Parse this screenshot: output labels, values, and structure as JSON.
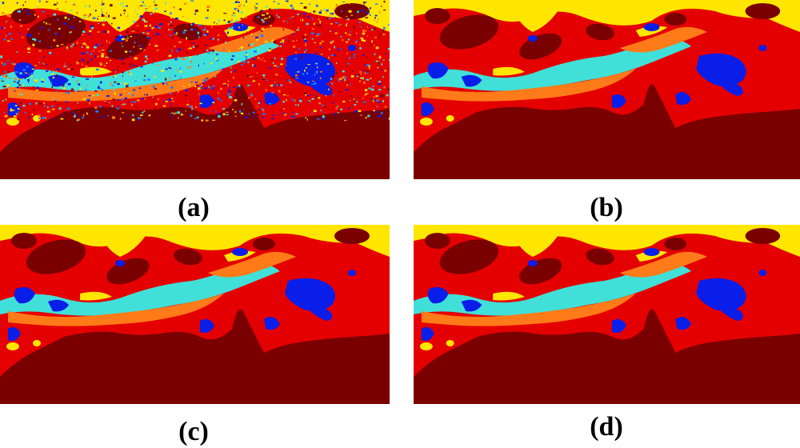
{
  "figure": {
    "panels": [
      {
        "label": "(a)",
        "style": "noisy"
      },
      {
        "label": "(b)",
        "style": "smooth"
      },
      {
        "label": "(c)",
        "style": "smooth"
      },
      {
        "label": "(d)",
        "style": "smooth"
      }
    ],
    "class_colors": {
      "maroon": "#7a0000",
      "red": "#e50000",
      "yellow": "#ffe600",
      "orange": "#ff7a18",
      "cyan": "#40e0d8",
      "blue": "#0a1eea",
      "light_blue": "#1e78ff"
    }
  }
}
